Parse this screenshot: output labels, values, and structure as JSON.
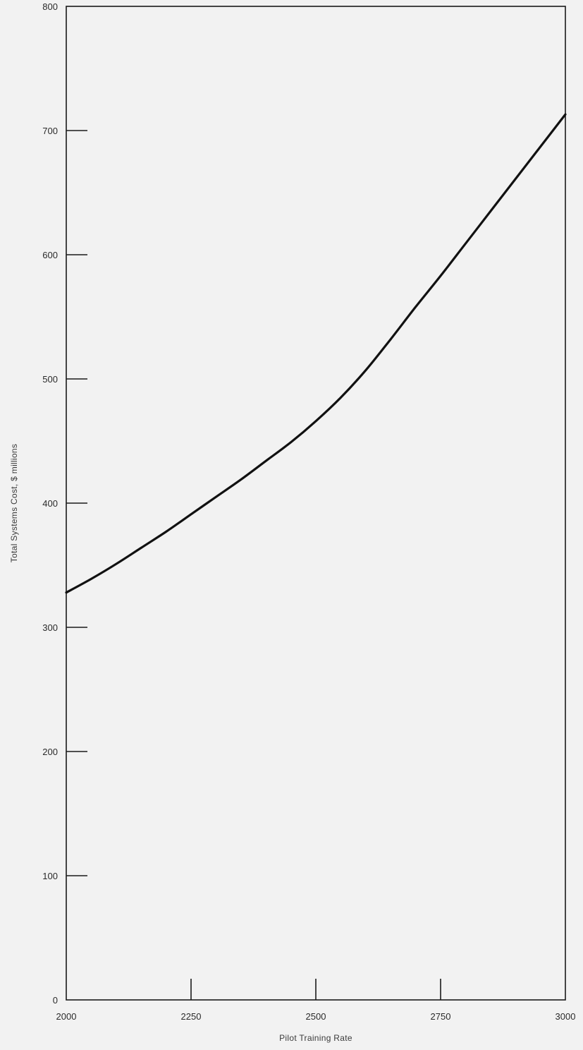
{
  "chart_data": {
    "type": "line",
    "title": "",
    "xlabel": "Pilot Training Rate",
    "ylabel": "Total Systems Cost, $ millions",
    "xlim": [
      2000,
      3000
    ],
    "ylim": [
      0,
      800
    ],
    "x_ticks": [
      "2000",
      "2250",
      "2500",
      "2750",
      "3000"
    ],
    "y_ticks": [
      "0",
      "100",
      "200",
      "300",
      "400",
      "500",
      "600",
      "700",
      "800"
    ],
    "grid": false,
    "legend": "none",
    "series": [
      {
        "color": "#111111",
        "points": [
          [
            2000,
            328
          ],
          [
            2050,
            339
          ],
          [
            2100,
            351
          ],
          [
            2150,
            364
          ],
          [
            2200,
            377
          ],
          [
            2250,
            391
          ],
          [
            2300,
            405
          ],
          [
            2350,
            419
          ],
          [
            2400,
            434
          ],
          [
            2450,
            449
          ],
          [
            2500,
            466
          ],
          [
            2550,
            485
          ],
          [
            2600,
            507
          ],
          [
            2650,
            532
          ],
          [
            2700,
            558
          ],
          [
            2750,
            583
          ],
          [
            2800,
            609
          ],
          [
            2850,
            635
          ],
          [
            2900,
            661
          ],
          [
            2950,
            687
          ],
          [
            3000,
            713
          ]
        ]
      }
    ]
  }
}
